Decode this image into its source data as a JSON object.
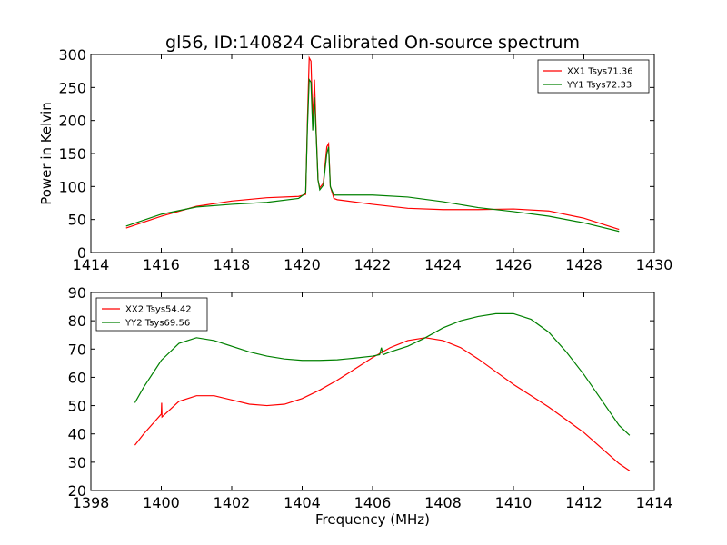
{
  "title": "gl56, ID:140824 Calibrated On-source spectrum",
  "chart_data": [
    {
      "type": "line",
      "xlabel": "",
      "ylabel": "Power in Kelvin",
      "xlim": [
        1414,
        1430
      ],
      "ylim": [
        0,
        300
      ],
      "xticks": [
        1414,
        1416,
        1418,
        1420,
        1422,
        1424,
        1426,
        1428,
        1430
      ],
      "yticks": [
        0,
        50,
        100,
        150,
        200,
        250,
        300
      ],
      "legend": "top-right",
      "series": [
        {
          "name": "XX1 Tsys71.36",
          "color": "#ff0000",
          "x": [
            1415,
            1416,
            1417,
            1418,
            1419,
            1419.9,
            1420.1,
            1420.15,
            1420.2,
            1420.25,
            1420.3,
            1420.35,
            1420.4,
            1420.45,
            1420.5,
            1420.6,
            1420.7,
            1420.75,
            1420.8,
            1420.9,
            1421,
            1422,
            1423,
            1424,
            1425,
            1426,
            1427,
            1428,
            1429
          ],
          "y": [
            37,
            55,
            70,
            78,
            83,
            85,
            88,
            200,
            295,
            290,
            200,
            262,
            180,
            110,
            98,
            105,
            160,
            165,
            100,
            82,
            80,
            73,
            67,
            65,
            65,
            66,
            63,
            52,
            35
          ]
        },
        {
          "name": "YY1 Tsys72.33",
          "color": "#008000",
          "x": [
            1415,
            1416,
            1417,
            1418,
            1419,
            1419.9,
            1420.1,
            1420.15,
            1420.2,
            1420.25,
            1420.3,
            1420.35,
            1420.4,
            1420.45,
            1420.5,
            1420.6,
            1420.7,
            1420.75,
            1420.8,
            1420.9,
            1421,
            1422,
            1423,
            1424,
            1425,
            1426,
            1427,
            1428,
            1429
          ],
          "y": [
            40,
            58,
            69,
            73,
            76,
            82,
            90,
            190,
            262,
            258,
            185,
            235,
            175,
            110,
            95,
            102,
            150,
            160,
            100,
            87,
            87,
            87,
            84,
            77,
            68,
            62,
            55,
            45,
            32
          ]
        }
      ]
    },
    {
      "type": "line",
      "xlabel": "Frequency (MHz)",
      "ylabel": "",
      "xlim": [
        1398,
        1414
      ],
      "ylim": [
        20,
        90
      ],
      "xticks": [
        1398,
        1400,
        1402,
        1404,
        1406,
        1408,
        1410,
        1412,
        1414
      ],
      "yticks": [
        20,
        30,
        40,
        50,
        60,
        70,
        80,
        90
      ],
      "legend": "top-left",
      "series": [
        {
          "name": "XX2 Tsys54.42",
          "color": "#ff0000",
          "x": [
            1399.25,
            1399.5,
            1400,
            1400.01,
            1400.02,
            1400.5,
            1401,
            1401.5,
            1402,
            1402.5,
            1403,
            1403.5,
            1404,
            1404.5,
            1405,
            1405.5,
            1406,
            1406.5,
            1407,
            1407.5,
            1408,
            1408.5,
            1409,
            1409.5,
            1410,
            1410.5,
            1411,
            1411.5,
            1412,
            1412.5,
            1413,
            1413.3
          ],
          "y": [
            36,
            40,
            47,
            51,
            46,
            51.5,
            53.5,
            53.5,
            52,
            50.5,
            50,
            50.5,
            52.5,
            55.5,
            59,
            63,
            67,
            70.5,
            73,
            74,
            73,
            70.5,
            66.5,
            62,
            57.5,
            53.5,
            49.5,
            45,
            40.5,
            35,
            29.5,
            27
          ]
        },
        {
          "name": "YY2 Tsys69.56",
          "color": "#008000",
          "x": [
            1399.25,
            1399.5,
            1400,
            1400.5,
            1401,
            1401.5,
            1402,
            1402.5,
            1403,
            1403.5,
            1404,
            1404.5,
            1405,
            1405.5,
            1406,
            1406.2,
            1406.25,
            1406.3,
            1406.5,
            1407,
            1407.5,
            1408,
            1408.5,
            1409,
            1409.5,
            1410,
            1410.5,
            1411,
            1411.5,
            1412,
            1412.5,
            1413,
            1413.3
          ],
          "y": [
            51,
            56.5,
            66,
            72,
            74,
            73,
            71,
            69,
            67.5,
            66.5,
            66,
            66,
            66.2,
            66.8,
            67.5,
            68,
            70.5,
            68,
            69,
            71,
            74,
            77.5,
            80,
            81.5,
            82.5,
            82.5,
            80.5,
            76,
            69,
            61,
            52,
            43,
            39.5
          ]
        }
      ]
    }
  ]
}
